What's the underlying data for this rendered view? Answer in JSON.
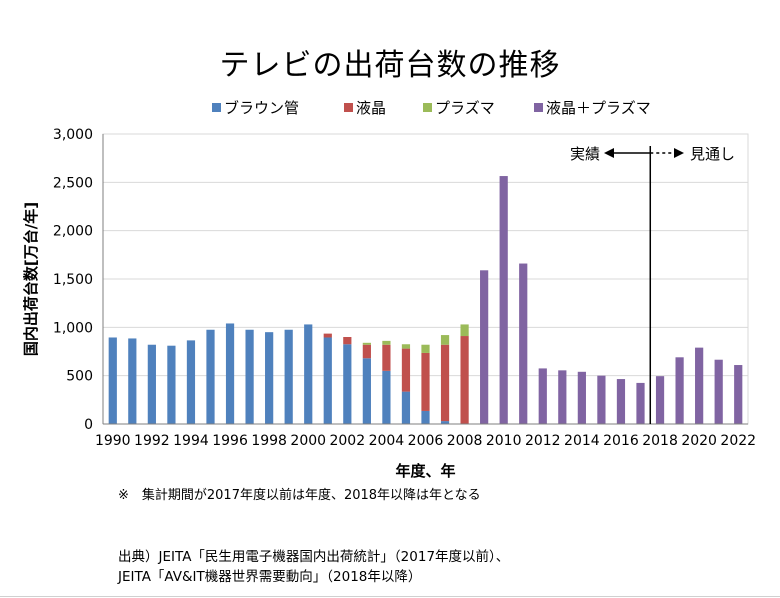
{
  "chart_data": {
    "type": "bar",
    "stacked": true,
    "title": "テレビの出荷台数の推移",
    "xlabel": "年度、年",
    "ylabel": "国内出荷台数[万台/年]",
    "ylim": [
      0,
      3000
    ],
    "yticks": [
      0,
      500,
      1000,
      1500,
      2000,
      2500,
      3000
    ],
    "ytick_labels": [
      "0",
      "500",
      "1,000",
      "1,500",
      "2,000",
      "2,500",
      "3,000"
    ],
    "grid": true,
    "categories": [
      1990,
      1991,
      1992,
      1993,
      1994,
      1995,
      1996,
      1997,
      1998,
      1999,
      2000,
      2001,
      2002,
      2003,
      2004,
      2005,
      2006,
      2007,
      2008,
      2009,
      2010,
      2011,
      2012,
      2013,
      2014,
      2015,
      2016,
      2017,
      2018,
      2019,
      2020,
      2021,
      2022
    ],
    "xtick_labels": [
      "1990",
      "1992",
      "1994",
      "1996",
      "1998",
      "2000",
      "2002",
      "2004",
      "2006",
      "2008",
      "2010",
      "2012",
      "2014",
      "2016",
      "2018",
      "2020",
      "2022"
    ],
    "series": [
      {
        "name": "ブラウン管",
        "color": "#4f81bd",
        "values": [
          895,
          885,
          820,
          810,
          865,
          975,
          1040,
          975,
          950,
          975,
          1030,
          895,
          825,
          680,
          550,
          335,
          135,
          30,
          0,
          0,
          0,
          0,
          0,
          0,
          0,
          0,
          0,
          0,
          0,
          0,
          0,
          0,
          0
        ]
      },
      {
        "name": "液晶",
        "color": "#c0504d",
        "values": [
          0,
          0,
          0,
          0,
          0,
          0,
          0,
          0,
          0,
          0,
          0,
          40,
          75,
          140,
          270,
          445,
          600,
          790,
          910,
          0,
          0,
          0,
          0,
          0,
          0,
          0,
          0,
          0,
          0,
          0,
          0,
          0,
          0
        ]
      },
      {
        "name": "プラズマ",
        "color": "#9bbb59",
        "values": [
          0,
          0,
          0,
          0,
          0,
          0,
          0,
          0,
          0,
          0,
          0,
          0,
          0,
          20,
          40,
          45,
          85,
          100,
          120,
          0,
          0,
          0,
          0,
          0,
          0,
          0,
          0,
          0,
          0,
          0,
          0,
          0,
          0
        ]
      },
      {
        "name": "液晶＋プラズマ",
        "color": "#8064a2",
        "values": [
          0,
          0,
          0,
          0,
          0,
          0,
          0,
          0,
          0,
          0,
          0,
          0,
          0,
          0,
          0,
          0,
          0,
          0,
          0,
          1590,
          2565,
          1660,
          575,
          555,
          540,
          500,
          465,
          425,
          495,
          690,
          790,
          665,
          610
        ]
      }
    ],
    "annotations": {
      "actual_label": "実績",
      "forecast_label": "見通し",
      "divider_after_category": 2017
    }
  },
  "footnote": "※　集計期間が2017年度以前は年度、2018年以降は年となる",
  "source_lines": [
    "出典）JEITA「民生用電子機器国内出荷統計」（2017年度以前）、",
    "JEITA「AV&IT機器世界需要動向」（2018年以降）"
  ],
  "colors": {
    "grid": "#d9d9d9",
    "axis": "#7f7f7f",
    "annotation": "#000000"
  }
}
